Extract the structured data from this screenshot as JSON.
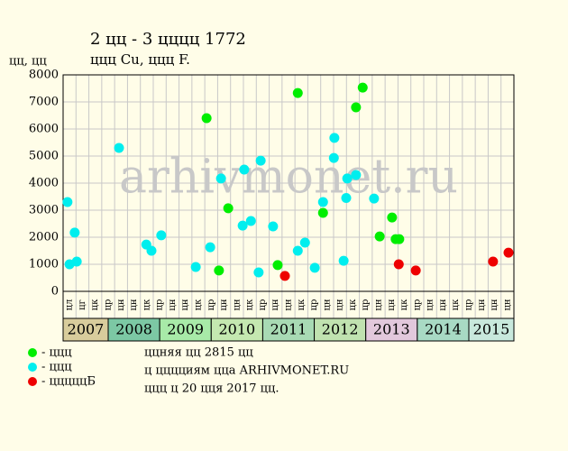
{
  "chart_data": {
    "type": "scatter",
    "title": "2 цц - 3 цццц 1772",
    "subtitle": "ццц Cu, ццц F.",
    "y_label": "цц, цц",
    "watermark": "arhivmonet.ru",
    "xlim": [
      2007.125,
      2015.875
    ],
    "ylim": [
      0,
      8000
    ],
    "yticks": [
      0,
      1000,
      2000,
      3000,
      4000,
      5000,
      6000,
      7000,
      8000
    ],
    "grid": true,
    "quarter_labels": [
      "цл",
      "цг",
      "цк",
      "цр",
      "цн",
      "цн",
      "цк",
      "цр",
      "цн",
      "цн",
      "цк",
      "цр",
      "цн",
      "цн",
      "цк",
      "цр",
      "цн",
      "цн",
      "цк",
      "цр",
      "цн",
      "цн",
      "цк",
      "цр",
      "цн",
      "цн",
      "цк",
      "цр",
      "цн",
      "цн",
      "цк",
      "цр",
      "цн",
      "цн",
      "цн"
    ],
    "years": [
      {
        "label": "2007",
        "value": 2007,
        "color": "#d8cc9c"
      },
      {
        "label": "2008",
        "value": 2008,
        "color": "#7cc8a4"
      },
      {
        "label": "2009",
        "value": 2009,
        "color": "#a8eaa8"
      },
      {
        "label": "2010",
        "value": 2010,
        "color": "#c4e8b0"
      },
      {
        "label": "2011",
        "value": 2011,
        "color": "#a8dab4"
      },
      {
        "label": "2012",
        "value": 2012,
        "color": "#c0e2b0"
      },
      {
        "label": "2013",
        "value": 2013,
        "color": "#e2c8dc"
      },
      {
        "label": "2014",
        "value": 2014,
        "color": "#a8dac4"
      },
      {
        "label": "2015",
        "value": 2015,
        "color": "#c8e8dc"
      }
    ],
    "series": [
      {
        "name": "- ццц",
        "color": "#00ee00",
        "x": [
          2009.91,
          2010.15,
          2010.33,
          2011.29,
          2011.68,
          2012.17,
          2012.81,
          2012.94,
          2013.27,
          2013.51,
          2013.58,
          2013.65
        ],
        "values": [
          6400,
          770,
          3070,
          970,
          7330,
          2900,
          6800,
          7530,
          2030,
          2730,
          1930,
          1930
        ]
      },
      {
        "name": "- ццц",
        "color": "#00eeee",
        "x": [
          2007.21,
          2007.25,
          2007.35,
          2007.39,
          2008.21,
          2008.74,
          2008.84,
          2009.03,
          2009.7,
          2009.98,
          2010.19,
          2010.61,
          2010.64,
          2010.77,
          2010.92,
          2010.96,
          2011.2,
          2011.68,
          2011.82,
          2012.01,
          2012.17,
          2012.38,
          2012.39,
          2012.57,
          2012.62,
          2012.64,
          2012.81,
          2013.16
        ],
        "values": [
          3300,
          1000,
          2170,
          1100,
          5300,
          1730,
          1500,
          2070,
          900,
          1630,
          4170,
          2430,
          4500,
          2600,
          700,
          4830,
          2400,
          1500,
          1800,
          870,
          3300,
          4930,
          5670,
          1130,
          3450,
          4170,
          4300,
          3430
        ]
      },
      {
        "name": "- цццццБ",
        "color": "#ee0000",
        "x": [
          2011.43,
          2013.64,
          2013.97,
          2015.47,
          2015.77
        ],
        "values": [
          570,
          1000,
          770,
          1100,
          1430
        ]
      }
    ],
    "notes": [
      "ццняя цц 2815 цц",
      "ц цццциям ццa ARHIVMONET.RU",
      "ццц ц 20 цця 2017 цц."
    ]
  }
}
